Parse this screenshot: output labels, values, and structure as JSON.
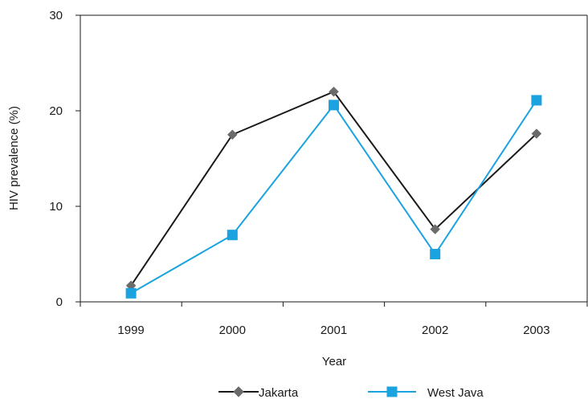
{
  "chart_data": {
    "type": "line",
    "title": "",
    "xlabel": "Year",
    "ylabel": "HIV prevalence (%)",
    "categories": [
      "1999",
      "2000",
      "2001",
      "2002",
      "2003"
    ],
    "ylim": [
      0,
      30
    ],
    "yticks": [
      0,
      10,
      20,
      30
    ],
    "grid": false,
    "legend_position": "bottom",
    "series": [
      {
        "name": "Jakarta",
        "values": [
          1.7,
          17.5,
          22.0,
          7.6,
          17.6
        ],
        "color": "#1a1a1a",
        "marker": "diamond",
        "marker_color": "#6b6b6b"
      },
      {
        "name": "West Java",
        "values": [
          0.9,
          7.0,
          20.6,
          5.0,
          21.1
        ],
        "color": "#1aa3de",
        "marker": "square",
        "marker_color": "#1aa3de"
      }
    ]
  }
}
